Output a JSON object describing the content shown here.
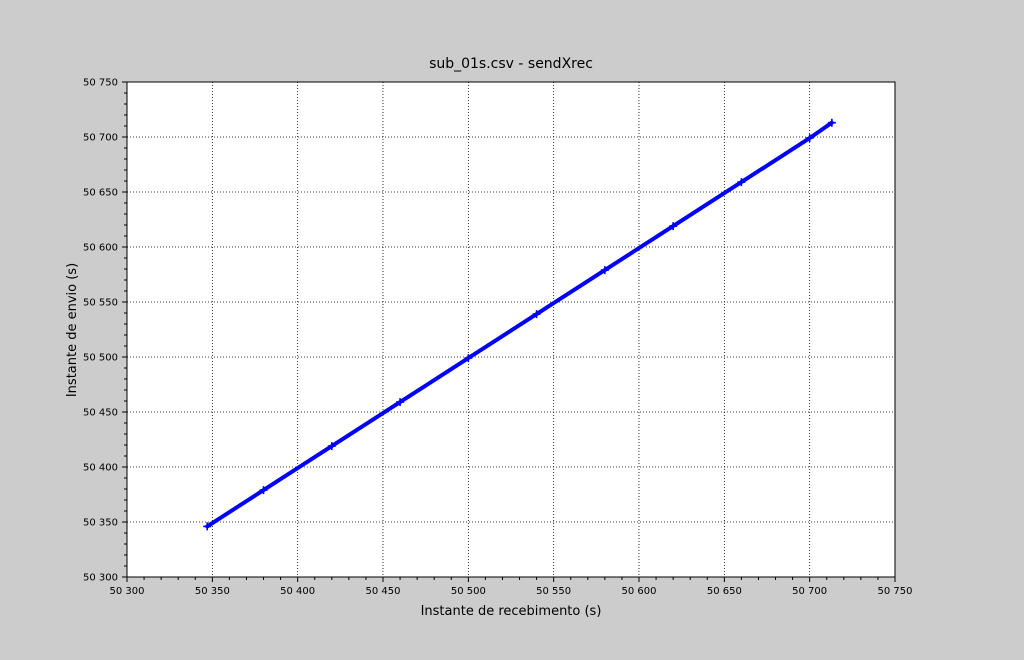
{
  "chart_data": {
    "type": "scatter",
    "title": "sub_01s.csv - sendXrec",
    "xlabel": "Instante de recebimento (s)",
    "ylabel": "Instante de envio (s)",
    "xlim": [
      50300,
      50750
    ],
    "ylim": [
      50300,
      50750
    ],
    "x_ticks": [
      50300,
      50350,
      50400,
      50450,
      50500,
      50550,
      50600,
      50650,
      50700,
      50750
    ],
    "y_ticks": [
      50300,
      50350,
      50400,
      50450,
      50500,
      50550,
      50600,
      50650,
      50700,
      50750
    ],
    "x_tick_labels": [
      "50 300",
      "50 350",
      "50 400",
      "50 450",
      "50 500",
      "50 550",
      "50 600",
      "50 650",
      "50 700",
      "50 750"
    ],
    "y_tick_labels": [
      "50 300",
      "50 350",
      "50 400",
      "50 450",
      "50 500",
      "50 550",
      "50 600",
      "50 650",
      "50 700",
      "50 750"
    ],
    "grid": true,
    "series": [
      {
        "color": "#0000ff",
        "marker": "plus",
        "x": [
          50347,
          50380,
          50420,
          50460,
          50500,
          50540,
          50580,
          50620,
          50660,
          50700,
          50713
        ],
        "y": [
          50346,
          50379,
          50419,
          50459,
          50499,
          50539,
          50579,
          50619,
          50659,
          50699,
          50713
        ]
      }
    ]
  }
}
